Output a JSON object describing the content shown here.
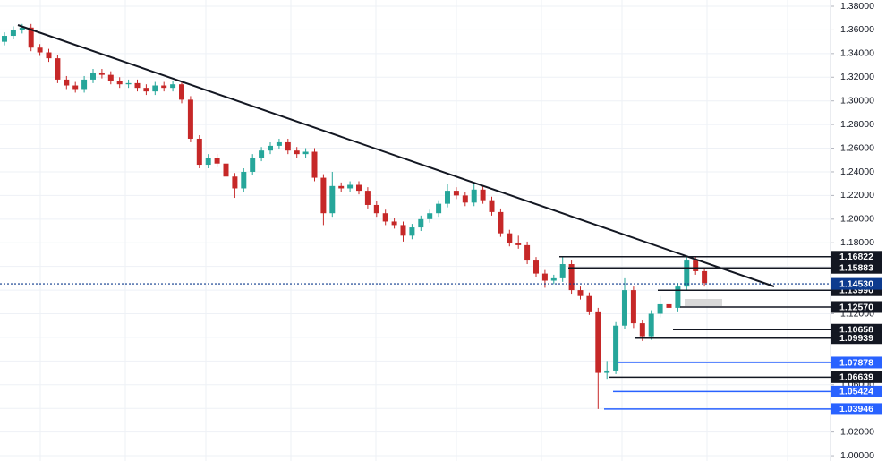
{
  "chart_data": {
    "type": "candlestick",
    "up_color": "#26a69a",
    "down_color": "#c62828",
    "open": [
      1.35,
      1.355,
      1.36,
      1.362,
      1.345,
      1.341,
      1.336,
      1.318,
      1.313,
      1.31,
      1.318,
      1.324,
      1.322,
      1.317,
      1.314,
      1.315,
      1.311,
      1.308,
      1.313,
      1.311,
      1.314,
      1.301,
      1.268,
      1.246,
      1.252,
      1.247,
      1.236,
      1.226,
      1.24,
      1.252,
      1.258,
      1.262,
      1.265,
      1.258,
      1.255,
      1.257,
      1.235,
      1.205,
      1.228,
      1.226,
      1.229,
      1.224,
      1.212,
      1.205,
      1.198,
      1.195,
      1.186,
      1.193,
      1.2,
      1.205,
      1.213,
      1.224,
      1.22,
      1.214,
      1.225,
      1.216,
      1.206,
      1.188,
      1.18,
      1.178,
      1.165,
      1.154,
      1.148,
      1.15,
      1.162,
      1.14,
      1.135,
      1.122,
      1.07,
      1.072,
      1.11,
      1.14,
      1.112,
      1.101,
      1.12,
      1.128,
      1.125,
      1.143,
      1.165,
      1.156
    ],
    "high": [
      1.358,
      1.363,
      1.365,
      1.365,
      1.348,
      1.344,
      1.339,
      1.321,
      1.316,
      1.321,
      1.327,
      1.327,
      1.325,
      1.32,
      1.318,
      1.318,
      1.314,
      1.316,
      1.316,
      1.317,
      1.317,
      1.304,
      1.271,
      1.255,
      1.255,
      1.25,
      1.239,
      1.243,
      1.255,
      1.261,
      1.265,
      1.268,
      1.268,
      1.261,
      1.26,
      1.26,
      1.238,
      1.24,
      1.231,
      1.232,
      1.232,
      1.227,
      1.215,
      1.208,
      1.201,
      1.198,
      1.196,
      1.203,
      1.208,
      1.216,
      1.23,
      1.227,
      1.223,
      1.23,
      1.228,
      1.219,
      1.209,
      1.191,
      1.186,
      1.181,
      1.168,
      1.157,
      1.153,
      1.168,
      1.165,
      1.143,
      1.138,
      1.125,
      1.08,
      1.113,
      1.15,
      1.143,
      1.115,
      1.123,
      1.135,
      1.131,
      1.146,
      1.168,
      1.168,
      1.159
    ],
    "low": [
      1.347,
      1.352,
      1.357,
      1.342,
      1.338,
      1.333,
      1.315,
      1.31,
      1.307,
      1.307,
      1.315,
      1.319,
      1.314,
      1.311,
      1.311,
      1.308,
      1.305,
      1.305,
      1.308,
      1.308,
      1.298,
      1.265,
      1.243,
      1.243,
      1.244,
      1.233,
      1.218,
      1.223,
      1.237,
      1.249,
      1.255,
      1.259,
      1.255,
      1.252,
      1.252,
      1.232,
      1.195,
      1.202,
      1.223,
      1.223,
      1.221,
      1.209,
      1.202,
      1.195,
      1.192,
      1.181,
      1.183,
      1.19,
      1.197,
      1.202,
      1.21,
      1.217,
      1.211,
      1.211,
      1.213,
      1.203,
      1.185,
      1.177,
      1.175,
      1.162,
      1.151,
      1.142,
      1.145,
      1.147,
      1.137,
      1.132,
      1.119,
      1.0395,
      1.065,
      1.069,
      1.107,
      1.108,
      1.097,
      1.098,
      1.117,
      1.122,
      1.122,
      1.14,
      1.153,
      1.143
    ],
    "close": [
      1.355,
      1.36,
      1.362,
      1.345,
      1.341,
      1.336,
      1.318,
      1.313,
      1.31,
      1.318,
      1.324,
      1.322,
      1.317,
      1.314,
      1.315,
      1.311,
      1.308,
      1.313,
      1.311,
      1.314,
      1.301,
      1.268,
      1.246,
      1.252,
      1.247,
      1.236,
      1.226,
      1.24,
      1.252,
      1.258,
      1.262,
      1.265,
      1.258,
      1.255,
      1.257,
      1.235,
      1.205,
      1.228,
      1.226,
      1.229,
      1.224,
      1.212,
      1.205,
      1.198,
      1.195,
      1.186,
      1.193,
      1.2,
      1.205,
      1.213,
      1.224,
      1.22,
      1.214,
      1.225,
      1.216,
      1.206,
      1.188,
      1.18,
      1.178,
      1.165,
      1.154,
      1.148,
      1.15,
      1.162,
      1.14,
      1.135,
      1.122,
      1.07,
      1.072,
      1.11,
      1.14,
      1.112,
      1.101,
      1.12,
      1.128,
      1.125,
      1.143,
      1.165,
      1.156,
      1.146
    ],
    "ylim": [
      0.9955,
      1.3853
    ],
    "yticks": [
      {
        "value": 1.38,
        "label": "1.38000"
      },
      {
        "value": 1.36,
        "label": "1.36000"
      },
      {
        "value": 1.34,
        "label": "1.34000"
      },
      {
        "value": 1.32,
        "label": "1.32000"
      },
      {
        "value": 1.3,
        "label": "1.30000"
      },
      {
        "value": 1.28,
        "label": "1.28000"
      },
      {
        "value": 1.26,
        "label": "1.26000"
      },
      {
        "value": 1.24,
        "label": "1.24000"
      },
      {
        "value": 1.22,
        "label": "1.22000"
      },
      {
        "value": 1.2,
        "label": "1.20000"
      },
      {
        "value": 1.18,
        "label": "1.18000"
      },
      {
        "value": 1.16,
        "label": "1.16000"
      },
      {
        "value": 1.14,
        "label": "1.14000"
      },
      {
        "value": 1.12,
        "label": "1.12000"
      },
      {
        "value": 1.1,
        "label": "1.10000"
      },
      {
        "value": 1.08,
        "label": "1.08000"
      },
      {
        "value": 1.06,
        "label": "1.06000"
      },
      {
        "value": 1.04,
        "label": "1.04000"
      },
      {
        "value": 1.02,
        "label": "1.02000"
      },
      {
        "value": 1.0,
        "label": "1.00000"
      }
    ],
    "grid": true,
    "levels": [
      {
        "value": 1.16822,
        "label": "1.16822",
        "color": "#131722"
      },
      {
        "value": 1.15883,
        "label": "1.15883",
        "color": "#131722"
      },
      {
        "value": 1.1399,
        "label": "1.13990",
        "color": "#131722"
      },
      {
        "value": 1.1257,
        "label": "1.12570",
        "color": "#131722"
      },
      {
        "value": 1.10658,
        "label": "1.10658",
        "color": "#131722"
      },
      {
        "value": 1.09939,
        "label": "1.09939",
        "color": "#131722"
      },
      {
        "value": 1.07878,
        "label": "1.07878",
        "color": "#2962ff"
      },
      {
        "value": 1.06639,
        "label": "1.06639",
        "color": "#131722"
      },
      {
        "value": 1.05424,
        "label": "1.05424",
        "color": "#2962ff"
      },
      {
        "value": 1.03946,
        "label": "1.03946",
        "color": "#2962ff"
      },
      {
        "value": 1.1453,
        "label": "1.14530",
        "color": "#0d3b8e",
        "dotted": true
      }
    ]
  }
}
